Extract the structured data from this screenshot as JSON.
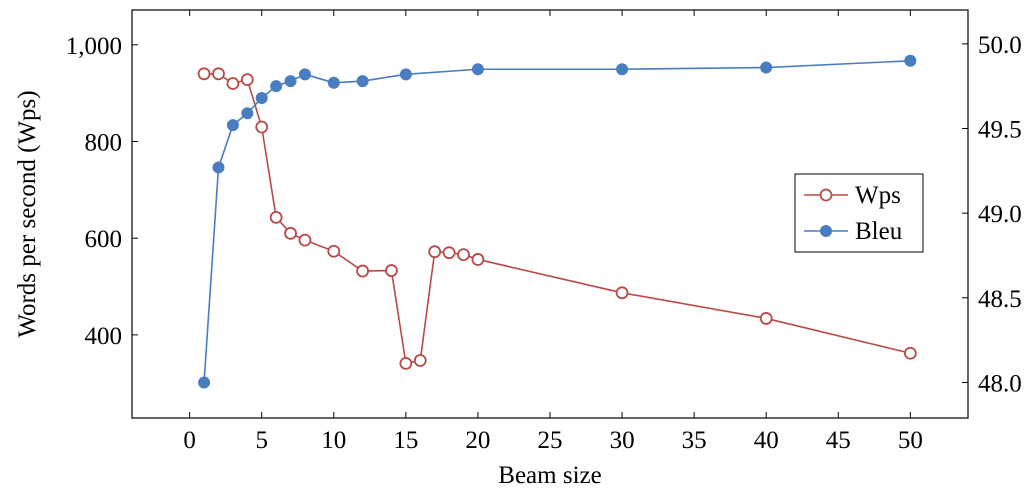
{
  "chart_data": {
    "type": "line",
    "xlabel": "Beam size",
    "ylabel": "Words per second (Wps)",
    "y2label": "",
    "xlim": [
      -4,
      54
    ],
    "ylim": [
      228,
      1072
    ],
    "y2lim": [
      47.79,
      50.2
    ],
    "x_ticks": [
      0,
      5,
      10,
      15,
      20,
      25,
      30,
      35,
      40,
      45,
      50
    ],
    "y_ticks": [
      400,
      600,
      800,
      1000
    ],
    "y_tick_labels": [
      "400",
      "600",
      "800",
      "1,000"
    ],
    "y2_ticks": [
      48.0,
      48.5,
      49.0,
      49.5,
      50.0
    ],
    "y2_tick_labels": [
      "48.0",
      "48.5",
      "49.0",
      "49.5",
      "50.0"
    ],
    "grid": false,
    "legend_position": "right",
    "series": [
      {
        "name": "Wps",
        "axis": "left",
        "color": "#b94a48",
        "marker": "open-circle",
        "x": [
          1,
          2,
          3,
          4,
          5,
          6,
          7,
          8,
          10,
          12,
          14,
          15,
          16,
          17,
          18,
          19,
          20,
          30,
          40,
          50
        ],
        "y": [
          940,
          940,
          920,
          928,
          830,
          643,
          610,
          596,
          573,
          532,
          533,
          341,
          347,
          572,
          570,
          566,
          556,
          487,
          434,
          362
        ]
      },
      {
        "name": "Bleu",
        "axis": "right",
        "color": "#4a7dbf",
        "marker": "filled-circle",
        "x": [
          1,
          2,
          3,
          4,
          5,
          6,
          7,
          8,
          10,
          12,
          15,
          20,
          30,
          40,
          50
        ],
        "y": [
          48.0,
          49.27,
          49.52,
          49.59,
          49.68,
          49.75,
          49.78,
          49.82,
          49.77,
          49.78,
          49.82,
          49.85,
          49.85,
          49.86,
          49.9
        ]
      }
    ]
  }
}
